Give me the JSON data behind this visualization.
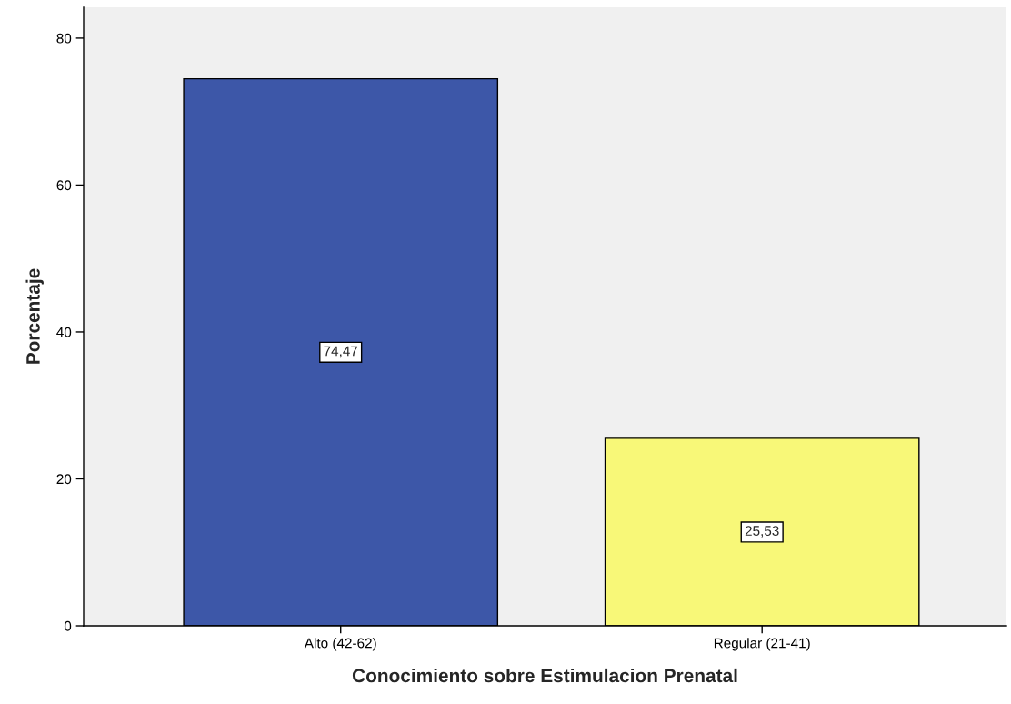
{
  "chart_data": {
    "type": "bar",
    "xlabel": "Conocimiento sobre Estimulacion Prenatal",
    "ylabel": "Porcentaje",
    "categories": [
      "Alto (42-62)",
      "Regular (21-41)"
    ],
    "values": [
      74.47,
      25.53
    ],
    "value_labels": [
      "74,47",
      "25,53"
    ],
    "colors": [
      "#3d57a8",
      "#f8f878"
    ],
    "ylim": [
      0,
      84.2
    ],
    "yticks": [
      0,
      20,
      40,
      60,
      80
    ],
    "grid": false,
    "legend": false
  }
}
